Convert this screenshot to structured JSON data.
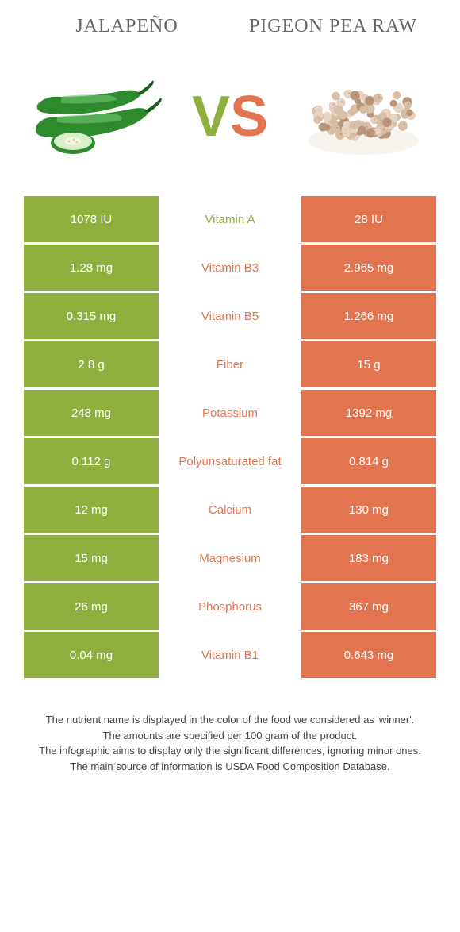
{
  "header": {
    "left": "Jalapeño",
    "right": "Pigeon pea raw"
  },
  "vs": {
    "v": "V",
    "s": "S"
  },
  "colors": {
    "left": "#8fb03e",
    "right": "#e2754f",
    "jalapeno_body": "#2d8a2d",
    "jalapeno_dark": "#1e5e1e",
    "jalapeno_highlight": "#6fc76f",
    "pea_light": "#e8d4c4",
    "pea_dark": "#b89578",
    "pea_spot": "#8a6a50"
  },
  "rows": [
    {
      "left": "1078 IU",
      "mid": "Vitamin A",
      "right": "28 IU",
      "winner": "left"
    },
    {
      "left": "1.28 mg",
      "mid": "Vitamin B3",
      "right": "2.965 mg",
      "winner": "right"
    },
    {
      "left": "0.315 mg",
      "mid": "Vitamin B5",
      "right": "1.266 mg",
      "winner": "right"
    },
    {
      "left": "2.8 g",
      "mid": "Fiber",
      "right": "15 g",
      "winner": "right"
    },
    {
      "left": "248 mg",
      "mid": "Potassium",
      "right": "1392 mg",
      "winner": "right"
    },
    {
      "left": "0.112 g",
      "mid": "Polyunsaturated fat",
      "right": "0.814 g",
      "winner": "right"
    },
    {
      "left": "12 mg",
      "mid": "Calcium",
      "right": "130 mg",
      "winner": "right"
    },
    {
      "left": "15 mg",
      "mid": "Magnesium",
      "right": "183 mg",
      "winner": "right"
    },
    {
      "left": "26 mg",
      "mid": "Phosphorus",
      "right": "367 mg",
      "winner": "right"
    },
    {
      "left": "0.04 mg",
      "mid": "Vitamin B1",
      "right": "0.643 mg",
      "winner": "right"
    }
  ],
  "footer": {
    "line1": "The nutrient name is displayed in the color of the food we considered as 'winner'.",
    "line2": "The amounts are specified per 100 gram of the product.",
    "line3": "The infographic aims to display only the significant differences, ignoring minor ones.",
    "line4": "The main source of information is USDA Food Composition Database."
  }
}
